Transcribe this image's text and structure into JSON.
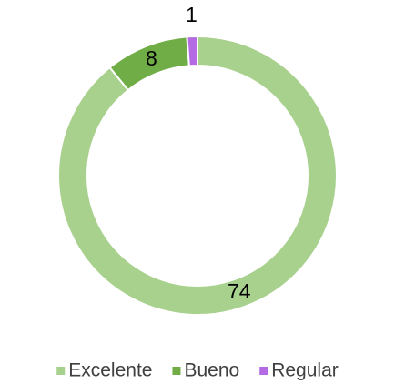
{
  "chart_data": {
    "type": "donut",
    "categories": [
      "Excelente",
      "Bueno",
      "Regular"
    ],
    "values": [
      74,
      8,
      1
    ],
    "colors": [
      "#a9d18e",
      "#70ad47",
      "#b36ae2"
    ],
    "legend": "bottom"
  }
}
